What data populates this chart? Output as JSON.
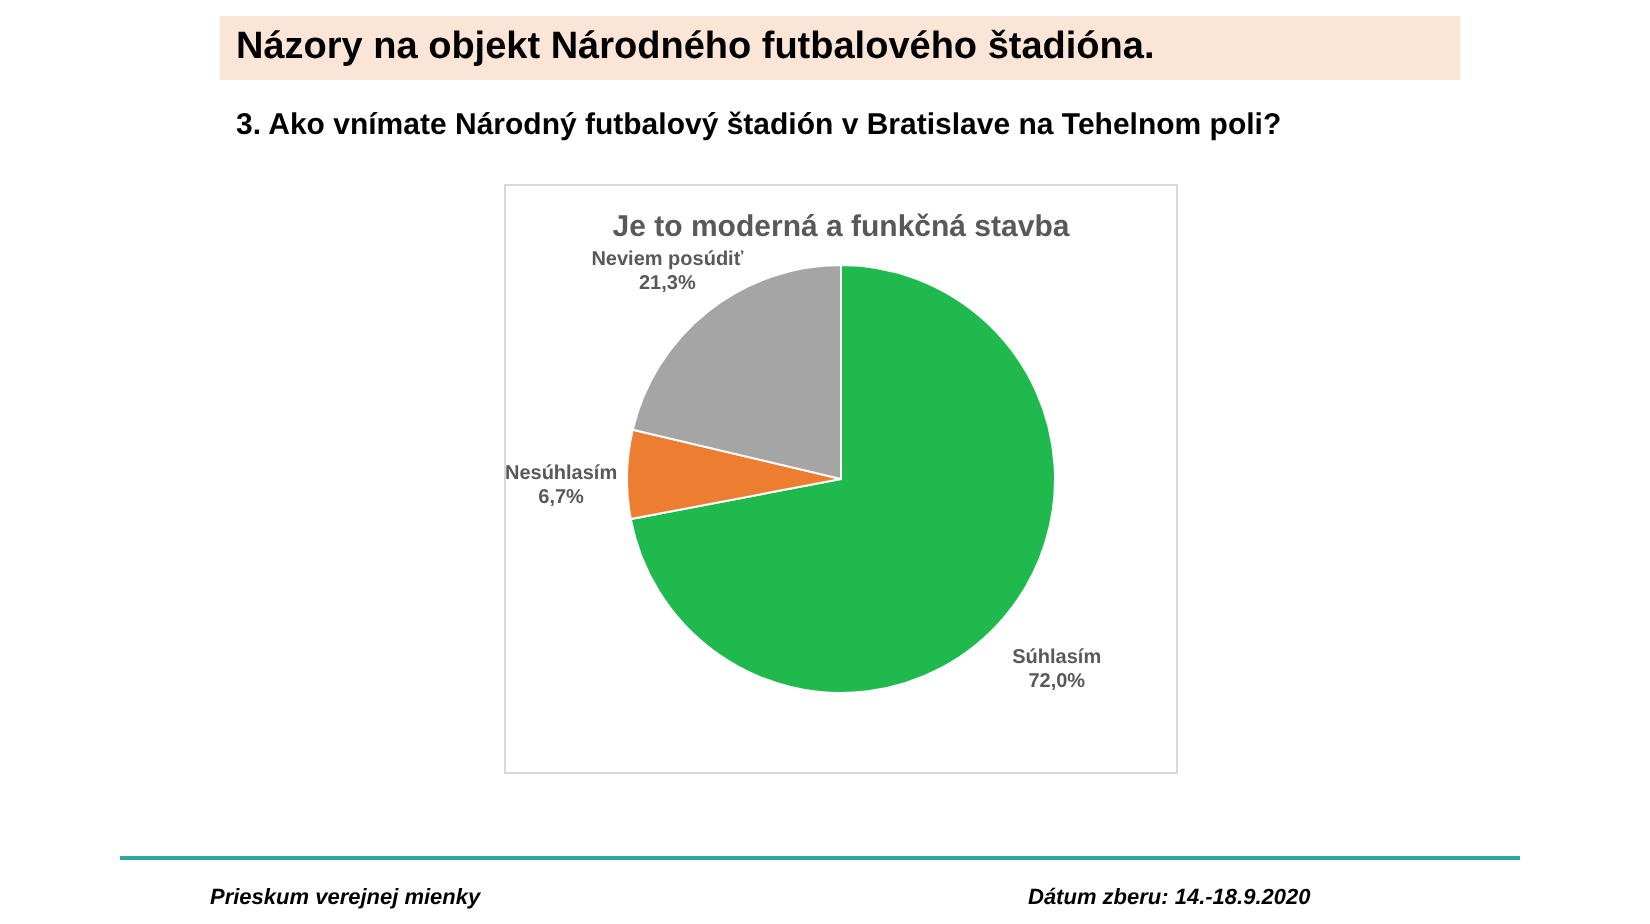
{
  "chart_data": {
    "type": "pie",
    "title": "Názory na objekt Národného futbalového štadióna.",
    "subtitle": "3. Ako vnímate Národný futbalový štadión v Bratislave na Tehelnom poli?",
    "annotations": [
      "Je to moderná a funkčná stavba",
      "Prieskum verejnej mienky",
      "Dátum zberu: 14.-18.9.2020"
    ],
    "categories": [
      "Súhlasím",
      "Nesúhlasím",
      "Neviem posúdiť"
    ],
    "values": [
      72.0,
      6.7,
      21.3
    ],
    "colors": [
      "#1fb94d",
      "#ed7d31",
      "#a5a5a5"
    ],
    "value_labels": [
      "72,0%",
      "6,7%",
      "21,3%"
    ]
  }
}
